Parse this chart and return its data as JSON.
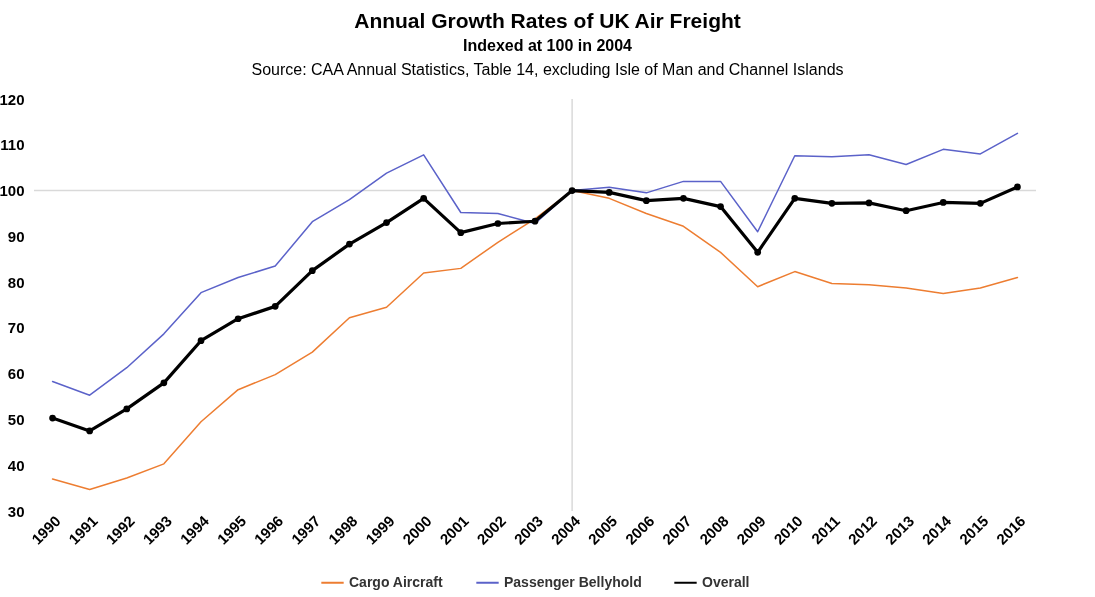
{
  "chart_data": {
    "type": "line",
    "title": "Annual Growth Rates of UK Air Freight",
    "subtitle": "Indexed at 100 in 2004",
    "annotations": [
      "Source: CAA Annual Statistics, Table 14, excluding Isle of Man and Channel Islands"
    ],
    "categories": [
      "1990",
      "1991",
      "1992",
      "1993",
      "1994",
      "1995",
      "1996",
      "1997",
      "1998",
      "1999",
      "2000",
      "2001",
      "2002",
      "2003",
      "2004",
      "2005",
      "2006",
      "2007",
      "2008",
      "2009",
      "2010",
      "2011",
      "2012",
      "2013",
      "2014",
      "2015",
      "2016"
    ],
    "series": [
      {
        "name": "Cargo Aircraft",
        "color": "#ed7d31",
        "values": [
          37.0,
          34.7,
          37.2,
          40.3,
          49.5,
          56.5,
          59.8,
          64.7,
          72.2,
          74.5,
          82.0,
          83.0,
          88.7,
          93.8,
          100,
          98.3,
          95.0,
          92.2,
          86.5,
          79.0,
          82.3,
          79.7,
          79.4,
          78.7,
          77.5,
          78.7,
          81.0
        ]
      },
      {
        "name": "Passenger Bellyhold",
        "color": "#5b62c9",
        "values": [
          58.3,
          55.3,
          61.3,
          68.7,
          77.7,
          81.0,
          83.5,
          93.2,
          98.0,
          103.8,
          107.8,
          95.2,
          95.0,
          92.8,
          100,
          100.7,
          99.5,
          102.0,
          102.0,
          91.0,
          107.6,
          107.4,
          107.8,
          105.7,
          109.0,
          108.0,
          112.5
        ]
      },
      {
        "name": "Overall",
        "color": "#000000",
        "marker": "circle",
        "values": [
          50.3,
          47.5,
          52.3,
          58.0,
          67.2,
          72.0,
          74.7,
          82.5,
          88.3,
          93.0,
          98.3,
          90.8,
          92.8,
          93.3,
          100,
          99.6,
          97.8,
          98.3,
          96.5,
          86.5,
          98.3,
          97.2,
          97.3,
          95.6,
          97.4,
          97.2,
          100.8
        ]
      }
    ],
    "ylim": [
      30,
      120
    ],
    "yticks": [
      30,
      40,
      50,
      60,
      70,
      80,
      90,
      100,
      110,
      120
    ],
    "ref_lines": [
      {
        "axis": "y",
        "value": 100,
        "color": "#d9d9d9"
      },
      {
        "axis": "x",
        "value": "2004",
        "color": "#d9d9d9"
      }
    ],
    "grid": false,
    "legend": "bottom",
    "line_style": "solid"
  }
}
